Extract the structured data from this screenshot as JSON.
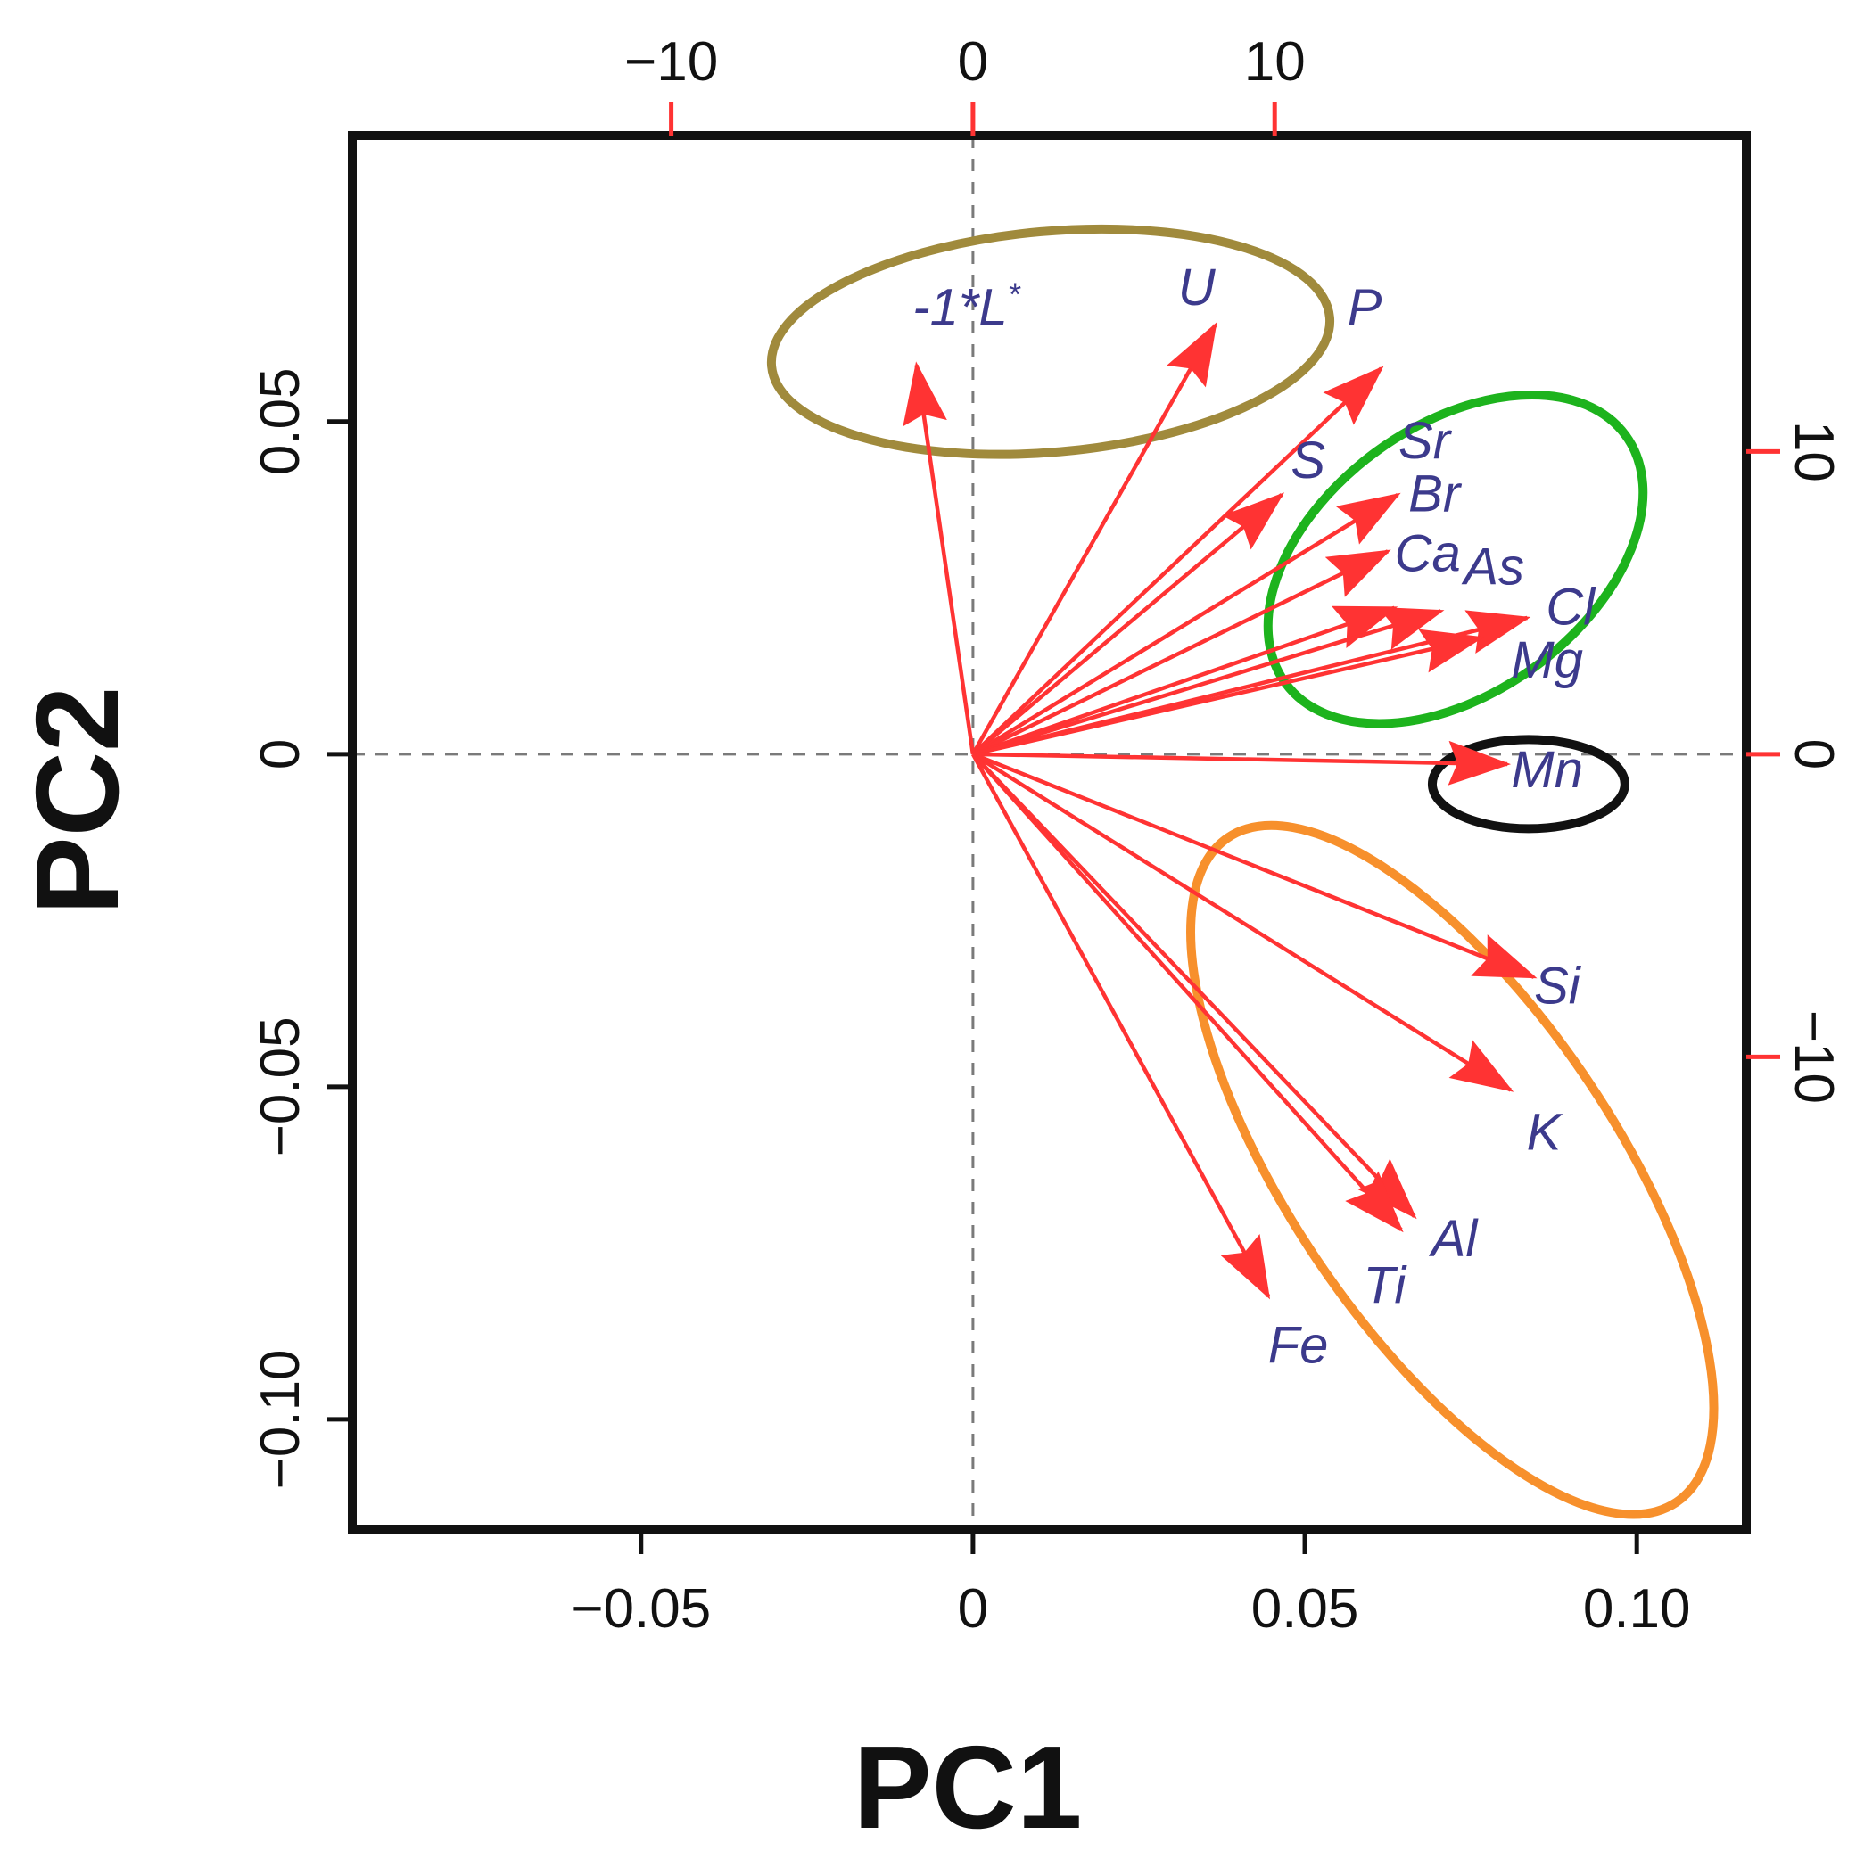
{
  "chart_data": {
    "type": "biplot",
    "title": "",
    "xlabel": "PC1",
    "ylabel": "PC2",
    "xlim": [
      -0.0935,
      0.1165
    ],
    "ylim": [
      -0.1165,
      0.093
    ],
    "xticks": [
      -0.05,
      0,
      0.05,
      0.1
    ],
    "xtick_labels": [
      "−0.05",
      "0",
      "0.05",
      "0.10"
    ],
    "yticks": [
      -0.1,
      -0.05,
      0,
      0.05
    ],
    "ytick_labels": [
      "−0.10",
      "−0.05",
      "0",
      "0.05"
    ],
    "top_axis": {
      "score_range": [
        -20.57,
        25.63
      ],
      "ticks": [
        -10,
        0,
        10
      ],
      "tick_labels": [
        "−10",
        "0",
        "10"
      ]
    },
    "right_axis": {
      "score_range": [
        -25.6,
        20.44
      ],
      "ticks": [
        -10,
        0,
        10
      ],
      "tick_labels": [
        "−10",
        "0",
        "10"
      ]
    },
    "reference_lines": {
      "x": 0,
      "y": 0,
      "style": "dashed"
    },
    "arrow_color": "#ff3333",
    "label_color": "#3c3a8c",
    "variables": [
      {
        "name": "-1*L*",
        "label_main": "-1*L",
        "label_sup": "*",
        "x": -0.0085,
        "y": 0.0585,
        "label_x": -0.001,
        "label_y": 0.0645
      },
      {
        "name": "U",
        "label_main": "U",
        "x": 0.0365,
        "y": 0.0645,
        "label_x": 0.0337,
        "label_y": 0.0675
      },
      {
        "name": "P",
        "label_main": "P",
        "x": 0.0615,
        "y": 0.058,
        "label_x": 0.059,
        "label_y": 0.0645
      },
      {
        "name": "S",
        "label_main": "S",
        "x": 0.0465,
        "y": 0.039,
        "label_x": 0.0505,
        "label_y": 0.0415
      },
      {
        "name": "Sr",
        "label_main": "Sr",
        "x": 0.064,
        "y": 0.039,
        "label_x": 0.068,
        "label_y": 0.0445
      },
      {
        "name": "Br",
        "label_main": "Br",
        "x": 0.0625,
        "y": 0.0305,
        "label_x": 0.0695,
        "label_y": 0.0365
      },
      {
        "name": "Ca",
        "label_main": "Ca",
        "x": 0.0635,
        "y": 0.022,
        "label_x": 0.0685,
        "label_y": 0.0275
      },
      {
        "name": "As",
        "label_main": "As",
        "x": 0.0705,
        "y": 0.0215,
        "label_x": 0.0785,
        "label_y": 0.0255
      },
      {
        "name": "Cl",
        "label_main": "Cl",
        "x": 0.0835,
        "y": 0.0205,
        "label_x": 0.09,
        "label_y": 0.0195
      },
      {
        "name": "Mg",
        "label_main": "Mg",
        "x": 0.0765,
        "y": 0.0175,
        "label_x": 0.0865,
        "label_y": 0.0115
      },
      {
        "name": "Mn",
        "label_main": "Mn",
        "x": 0.0805,
        "y": -0.0015,
        "label_x": 0.0865,
        "label_y": -0.005
      },
      {
        "name": "Si",
        "label_main": "Si",
        "x": 0.0845,
        "y": -0.0335,
        "label_x": 0.088,
        "label_y": -0.0375
      },
      {
        "name": "K",
        "label_main": "K",
        "x": 0.081,
        "y": -0.0505,
        "label_x": 0.086,
        "label_y": -0.0595
      },
      {
        "name": "Al",
        "label_main": "Al",
        "x": 0.0665,
        "y": -0.0695,
        "label_x": 0.0725,
        "label_y": -0.0755
      },
      {
        "name": "Ti",
        "label_main": "Ti",
        "x": 0.0645,
        "y": -0.0715,
        "label_x": 0.062,
        "label_y": -0.0825
      },
      {
        "name": "Fe",
        "label_main": "Fe",
        "x": 0.0445,
        "y": -0.0815,
        "label_x": 0.049,
        "label_y": -0.0915
      }
    ],
    "groups": [
      {
        "name": "brown-group",
        "color": "#a08a3c",
        "members": [
          "-1*L*",
          "U",
          "P"
        ],
        "cx": 0.0117,
        "cy": 0.062,
        "rx": 0.0422,
        "ry": 0.0166,
        "angle": -5
      },
      {
        "name": "green-group",
        "color": "#1db31d",
        "members": [
          "S",
          "Sr",
          "Br",
          "Ca",
          "As",
          "Cl",
          "Mg"
        ],
        "cx": 0.0727,
        "cy": 0.0293,
        "rx": 0.0317,
        "ry": 0.0201,
        "angle": -36
      },
      {
        "name": "black-group",
        "color": "#111111",
        "members": [
          "Mn"
        ],
        "cx": 0.0837,
        "cy": -0.0045,
        "rx": 0.0145,
        "ry": 0.0067,
        "angle": 0
      },
      {
        "name": "orange-group",
        "color": "#f7902c",
        "members": [
          "Si",
          "K",
          "Al",
          "Ti",
          "Fe"
        ],
        "cx": 0.0722,
        "cy": -0.0625,
        "rx": 0.0604,
        "ry": 0.0244,
        "angle": 56
      }
    ]
  }
}
